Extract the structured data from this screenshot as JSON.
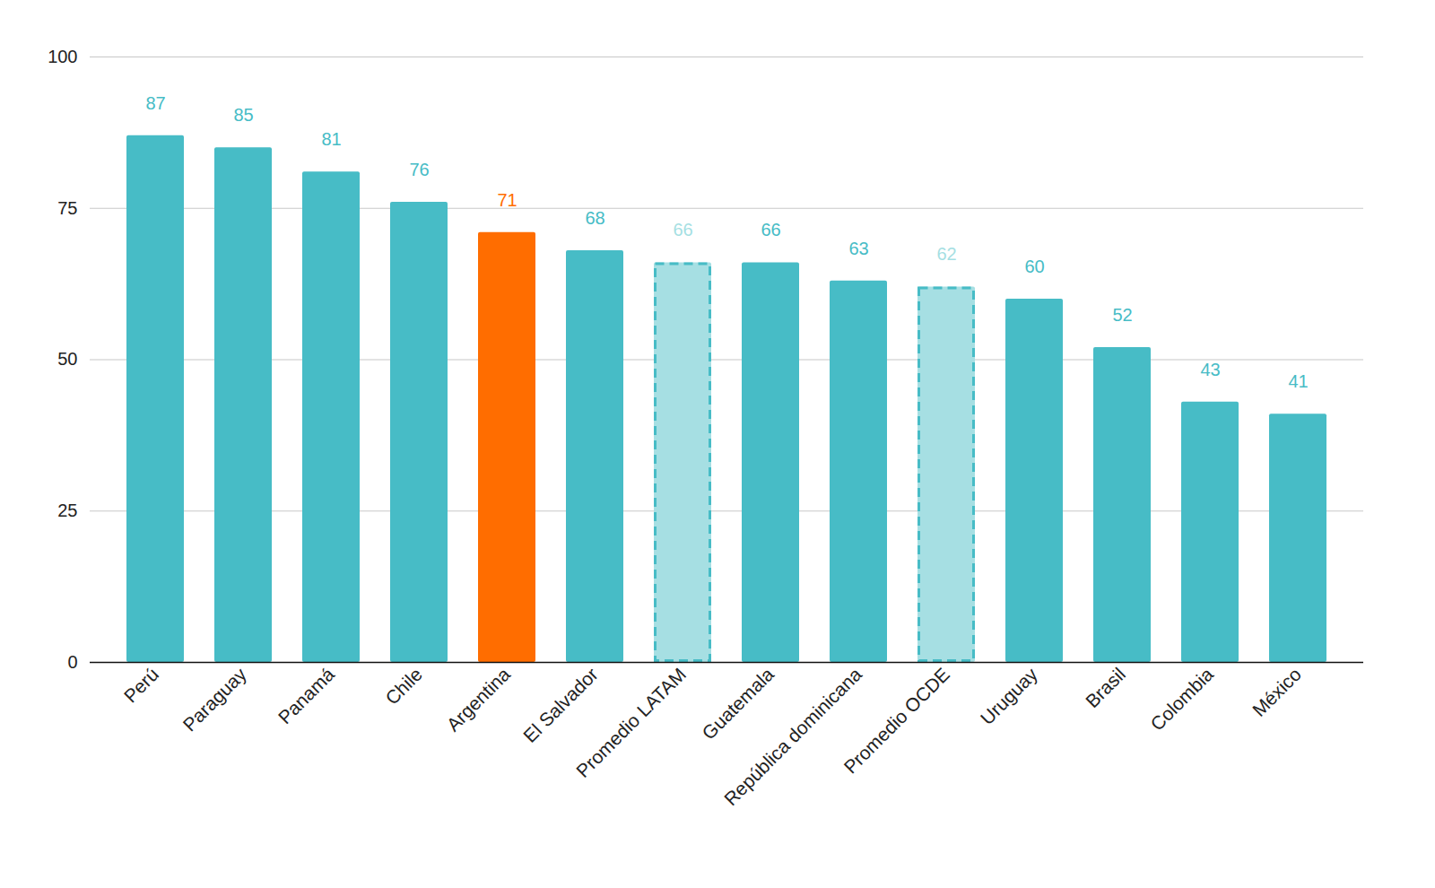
{
  "chart_data": {
    "type": "bar",
    "categories": [
      "Perú",
      "Paraguay",
      "Panamá",
      "Chile",
      "Argentina",
      "El Salvador",
      "Promedio LATAM",
      "Guatemala",
      "República dominicana",
      "Promedio OCDE",
      "Uruguay",
      "Brasil",
      "Colombia",
      "México"
    ],
    "values": [
      87,
      85,
      81,
      76,
      71,
      68,
      66,
      66,
      63,
      62,
      60,
      52,
      43,
      41
    ],
    "color": "#47bcc6",
    "colors": [
      "#47bcc6",
      "#47bcc6",
      "#47bcc6",
      "#47bcc6",
      "#ff6d00",
      "#47bcc6",
      "#a6dfe3",
      "#47bcc6",
      "#47bcc6",
      "#a6dfe3",
      "#47bcc6",
      "#47bcc6",
      "#47bcc6",
      "#47bcc6"
    ],
    "ylim": [
      0,
      100
    ],
    "yticks": [
      0,
      25,
      50,
      75,
      100
    ],
    "grid": true,
    "data_labels": true
  }
}
